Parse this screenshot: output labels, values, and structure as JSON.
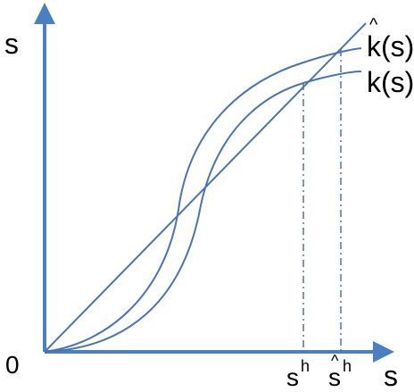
{
  "axes": {
    "origin_label": "0",
    "y_axis_label": "s",
    "x_axis_label": "s"
  },
  "curves": {
    "upper_curve_label": "k(s)",
    "upper_curve_hat": "^",
    "lower_curve_label": "k(s)"
  },
  "markers": {
    "s_h_base": "s",
    "s_h_sup": "h",
    "s_hat_h_base": "s",
    "s_hat_h_sup": "h",
    "s_hat_h_hat": "^"
  },
  "colors": {
    "curve": "#4a74b0",
    "axis": "#4a7fc1",
    "text": "#000000"
  }
}
